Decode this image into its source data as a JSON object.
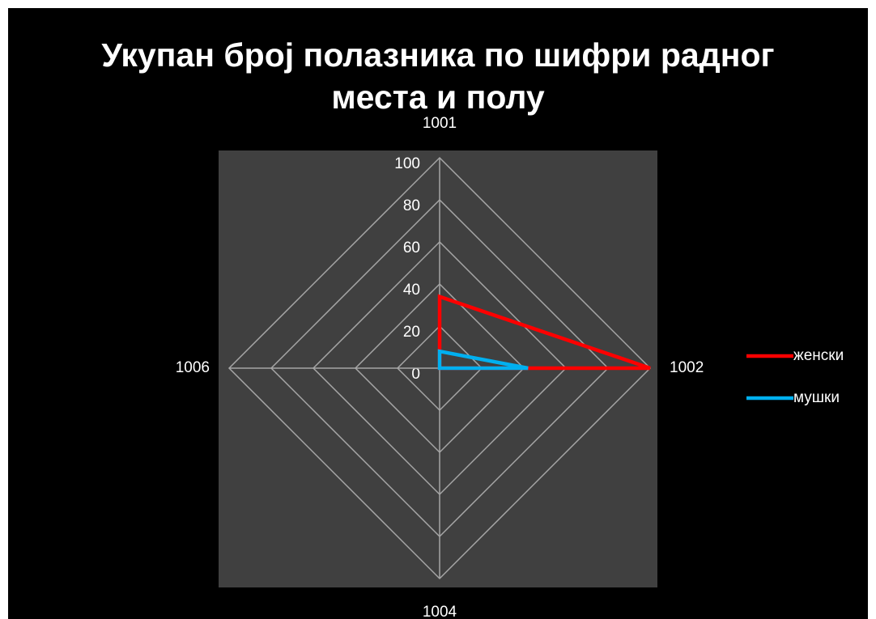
{
  "chart_data": {
    "type": "radar",
    "title": "Укупан број полазника по шифри радног места и полу",
    "categories": [
      "1001",
      "1002",
      "1004",
      "1006"
    ],
    "series": [
      {
        "name": "женски",
        "color": "#ff0000",
        "values": [
          34,
          100,
          0,
          0
        ]
      },
      {
        "name": "мушки",
        "color": "#00b0f0",
        "values": [
          8,
          42,
          0,
          0
        ]
      }
    ],
    "ylim": [
      0,
      100
    ],
    "yticks": [
      0,
      20,
      40,
      60,
      80,
      100
    ],
    "grid": true,
    "legend": "right"
  }
}
